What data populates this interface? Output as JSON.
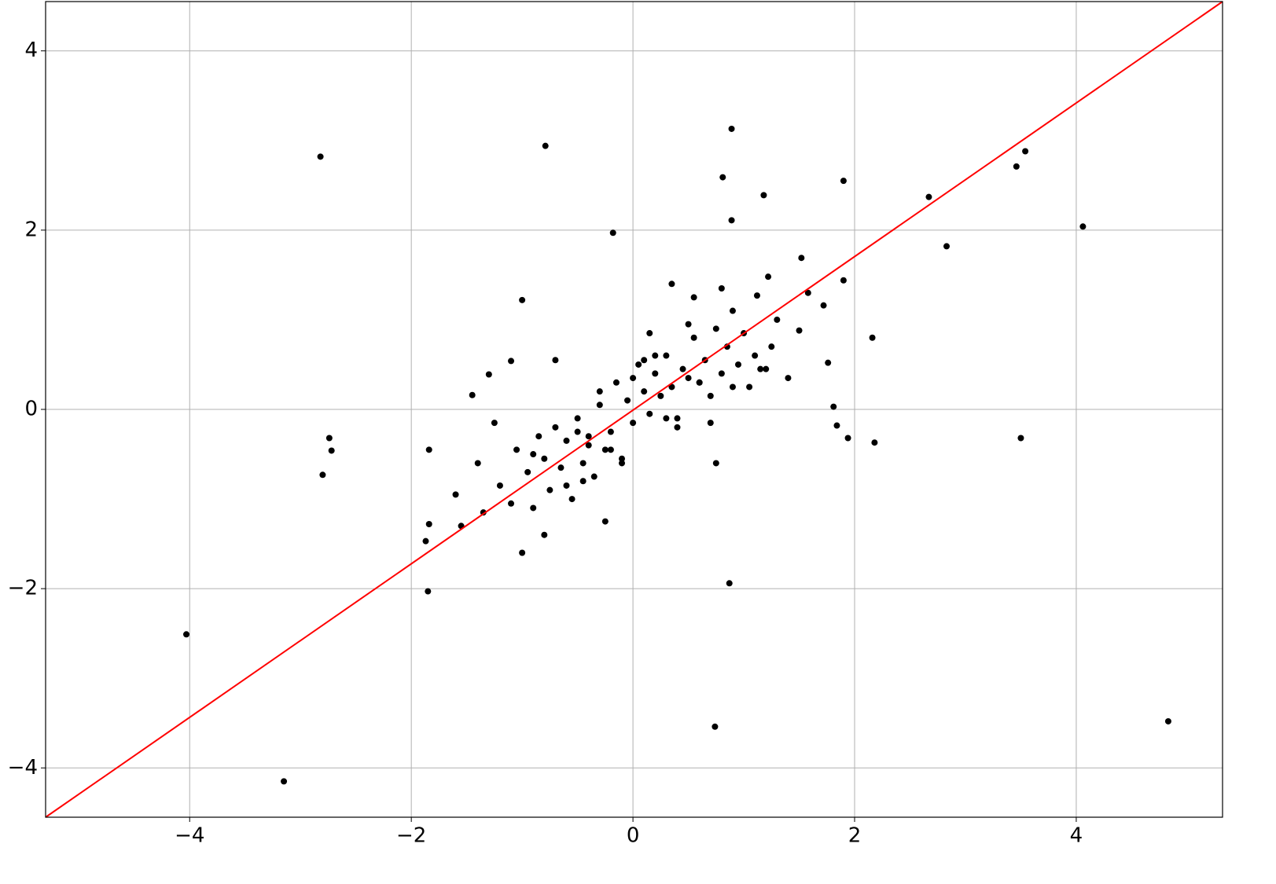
{
  "chart_data": {
    "type": "scatter",
    "xlim": [
      -5.3,
      5.32
    ],
    "ylim": [
      -4.55,
      4.55
    ],
    "xticks": [
      {
        "value": -4,
        "label": "−4"
      },
      {
        "value": -2,
        "label": "−2"
      },
      0,
      2,
      4
    ],
    "yticks": [
      {
        "value": -4,
        "label": "−4"
      },
      {
        "value": -2,
        "label": "−2"
      },
      0,
      2,
      4
    ],
    "grid": true,
    "series": [
      {
        "color": "#000000",
        "x": [
          -4.03,
          -3.15,
          -2.82,
          -2.8,
          -2.74,
          -2.72,
          -1.85,
          -1.84,
          -1.87,
          -1.84,
          -0.79,
          -0.18,
          -1.0,
          0.89,
          0.81,
          0.89,
          1.18,
          1.9,
          2.67,
          2.83,
          3.46,
          3.54,
          4.06,
          3.5,
          4.83,
          0.74,
          0.87,
          2.16,
          2.18,
          1.94,
          1.84,
          1.81,
          1.76,
          1.52,
          1.58,
          1.9,
          1.72,
          1.22,
          1.12,
          -1.45,
          -1.3,
          -1.1,
          -1.6,
          -1.55,
          -1.4,
          -1.35,
          -1.25,
          -1.2,
          -1.1,
          -1.05,
          -0.95,
          -0.9,
          -0.85,
          -0.8,
          -0.75,
          -0.7,
          -0.65,
          -0.6,
          -0.55,
          -0.5,
          -0.45,
          -0.4,
          -0.35,
          -0.3,
          -0.25,
          -0.2,
          -0.15,
          -0.1,
          -0.05,
          0.0,
          0.05,
          0.1,
          0.15,
          0.2,
          0.25,
          0.3,
          0.35,
          0.4,
          0.45,
          0.5,
          0.55,
          0.6,
          0.65,
          0.7,
          0.75,
          0.8,
          0.85,
          0.9,
          0.95,
          1.0,
          1.05,
          1.1,
          1.2,
          1.3,
          1.4,
          1.5,
          -0.9,
          -0.7,
          -0.5,
          -0.3,
          -0.1,
          0.1,
          0.3,
          0.5,
          0.7,
          0.9,
          -0.6,
          -0.4,
          -0.2,
          0.0,
          0.2,
          0.4,
          0.6,
          0.8,
          -0.8,
          -1.0,
          0.35,
          -0.25,
          0.15,
          0.55,
          0.75,
          -0.45,
          1.15,
          1.25
        ],
        "y": [
          -2.51,
          -4.15,
          2.82,
          -0.73,
          -0.32,
          -0.46,
          -2.03,
          -0.45,
          -1.47,
          -1.28,
          2.94,
          1.97,
          1.22,
          3.13,
          2.59,
          2.11,
          2.39,
          2.55,
          2.37,
          1.82,
          2.71,
          2.88,
          2.04,
          -0.32,
          -3.48,
          -3.54,
          -1.94,
          0.8,
          -0.37,
          -0.32,
          -0.18,
          0.03,
          0.52,
          1.69,
          1.3,
          1.44,
          1.16,
          1.48,
          1.27,
          0.16,
          0.39,
          0.54,
          -0.95,
          -1.3,
          -0.6,
          -1.15,
          -0.15,
          -0.85,
          -1.05,
          -0.45,
          -0.7,
          -1.1,
          -0.3,
          -0.55,
          -0.9,
          -0.2,
          -0.65,
          -0.35,
          -1.0,
          -0.1,
          -0.6,
          -0.3,
          -0.75,
          0.05,
          -0.45,
          -0.25,
          0.3,
          -0.55,
          0.1,
          -0.15,
          0.5,
          0.2,
          -0.05,
          0.4,
          0.15,
          0.6,
          0.25,
          -0.1,
          0.45,
          0.35,
          0.8,
          0.3,
          0.55,
          0.15,
          0.9,
          0.4,
          0.7,
          1.1,
          0.5,
          0.85,
          0.25,
          0.6,
          0.45,
          1.0,
          0.35,
          0.88,
          -0.5,
          0.55,
          -0.25,
          0.2,
          -0.6,
          0.55,
          -0.1,
          0.95,
          -0.15,
          0.25,
          -0.85,
          -0.4,
          -0.45,
          0.35,
          0.6,
          -0.2,
          0.3,
          1.35,
          -1.4,
          -1.6,
          1.4,
          -1.25,
          0.85,
          1.25,
          -0.6,
          -0.8,
          0.45,
          0.7
        ]
      },
      {
        "color": "#ff0000",
        "x": [
          -5.3,
          5.32
        ],
        "y": [
          -4.55,
          4.55
        ]
      }
    ]
  }
}
